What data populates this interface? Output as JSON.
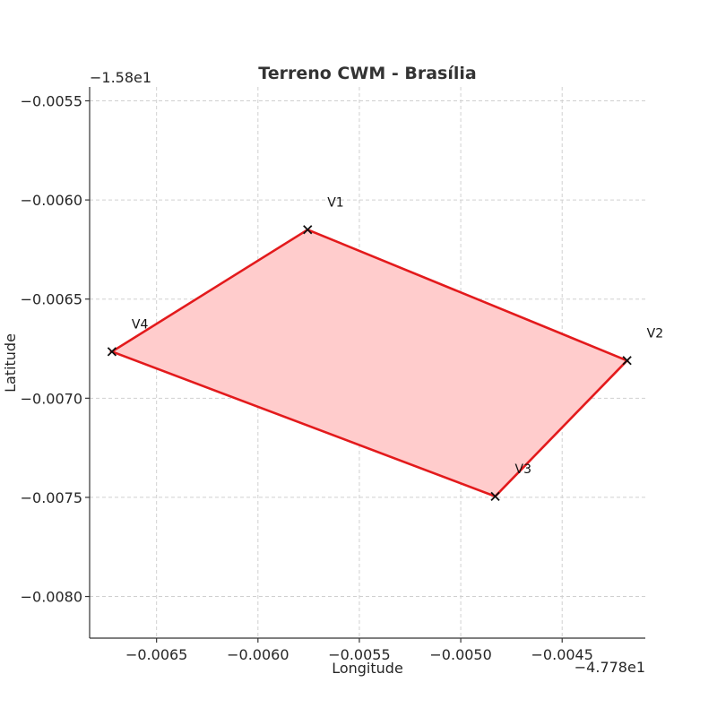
{
  "chart_data": {
    "type": "scatter",
    "title": "Terreno CWM - Brasília",
    "xlabel": "Longitude",
    "ylabel": "Latitude",
    "x_offset_label": "−4.778e1",
    "y_offset_label": "−1.58e1",
    "x_offset": -47.78,
    "y_offset": -15.8,
    "xlim": [
      -0.00683,
      -0.00409
    ],
    "ylim": [
      -0.00821,
      -0.00543
    ],
    "x_ticks": [
      -0.0065,
      -0.006,
      -0.0055,
      -0.005,
      -0.0045
    ],
    "x_tick_labels": [
      "−0.0065",
      "−0.0060",
      "−0.0055",
      "−0.0050",
      "−0.0045"
    ],
    "y_ticks": [
      -0.0055,
      -0.006,
      -0.0065,
      -0.007,
      -0.0075,
      -0.008
    ],
    "y_tick_labels": [
      "−0.0055",
      "−0.0060",
      "−0.0065",
      "−0.0070",
      "−0.0075",
      "−0.0080"
    ],
    "grid": true,
    "polygon": {
      "fill_color": "#ffcccc",
      "edge_color": "#e31a1c",
      "marker_color": "#111111"
    },
    "vertices": [
      {
        "label": "V1",
        "x": -0.005755,
        "y": -0.00615
      },
      {
        "label": "V2",
        "x": -0.00418,
        "y": -0.00681
      },
      {
        "label": "V3",
        "x": -0.00483,
        "y": -0.007495
      },
      {
        "label": "V4",
        "x": -0.00672,
        "y": -0.006765
      }
    ]
  }
}
